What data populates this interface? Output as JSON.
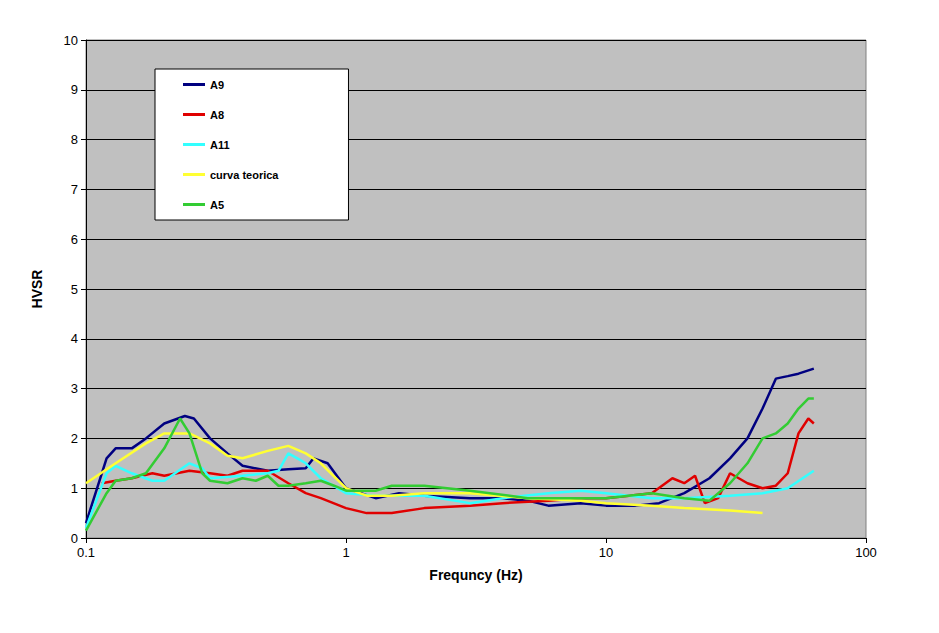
{
  "chart_data": {
    "type": "line",
    "x_label": "Frequncy (Hz)",
    "y_label": "HVSR",
    "log": "x",
    "grid": true,
    "legend": "upper left",
    "xlim": [
      0.1,
      100
    ],
    "xticks": [
      0.1,
      1,
      10,
      100
    ],
    "ylim": [
      0,
      10
    ],
    "yticks": [
      0,
      1,
      2,
      3,
      4,
      5,
      6,
      7,
      8,
      9,
      10
    ],
    "series": [
      {
        "name": "A9",
        "color": "#000080",
        "x": [
          0.1,
          0.12,
          0.13,
          0.15,
          0.17,
          0.2,
          0.24,
          0.26,
          0.3,
          0.35,
          0.4,
          0.5,
          0.6,
          0.7,
          0.75,
          0.85,
          1.0,
          1.3,
          1.6,
          2,
          3,
          4,
          5,
          6,
          8,
          10,
          13,
          16,
          20,
          25,
          30,
          35,
          40,
          45,
          50,
          55,
          63
        ],
        "values": [
          0.3,
          1.6,
          1.8,
          1.8,
          2.0,
          2.3,
          2.45,
          2.4,
          2.0,
          1.7,
          1.45,
          1.35,
          1.38,
          1.4,
          1.6,
          1.5,
          1.0,
          0.8,
          0.9,
          0.85,
          0.8,
          0.8,
          0.75,
          0.65,
          0.7,
          0.65,
          0.65,
          0.7,
          0.9,
          1.2,
          1.6,
          2.0,
          2.6,
          3.2,
          3.25,
          3.3,
          3.4
        ]
      },
      {
        "name": "A8",
        "color": "#e00000",
        "x": [
          0.115,
          0.13,
          0.15,
          0.18,
          0.2,
          0.25,
          0.3,
          0.35,
          0.4,
          0.5,
          0.6,
          0.7,
          0.8,
          1.0,
          1.2,
          1.5,
          2,
          3,
          4,
          6,
          8,
          10,
          15,
          18,
          20,
          22,
          24,
          27,
          30,
          35,
          40,
          45,
          50,
          55,
          60,
          63
        ],
        "values": [
          1.1,
          1.15,
          1.2,
          1.3,
          1.25,
          1.35,
          1.3,
          1.25,
          1.35,
          1.35,
          1.1,
          0.9,
          0.8,
          0.6,
          0.5,
          0.5,
          0.6,
          0.65,
          0.7,
          0.75,
          0.8,
          0.8,
          0.9,
          1.2,
          1.1,
          1.25,
          0.7,
          0.8,
          1.3,
          1.1,
          1.0,
          1.05,
          1.3,
          2.1,
          2.4,
          2.3
        ]
      },
      {
        "name": "A11",
        "color": "#33ffff",
        "x": [
          0.1,
          0.12,
          0.13,
          0.15,
          0.18,
          0.2,
          0.22,
          0.25,
          0.28,
          0.3,
          0.4,
          0.5,
          0.55,
          0.6,
          0.65,
          0.7,
          0.8,
          1.0,
          1.3,
          2,
          3,
          4,
          6,
          8,
          10,
          15,
          20,
          30,
          40,
          50,
          63
        ],
        "values": [
          0.2,
          1.3,
          1.45,
          1.3,
          1.15,
          1.15,
          1.3,
          1.5,
          1.4,
          1.2,
          1.25,
          1.3,
          1.35,
          1.7,
          1.6,
          1.5,
          1.2,
          0.9,
          0.85,
          0.85,
          0.7,
          0.8,
          0.9,
          0.95,
          0.9,
          0.8,
          0.8,
          0.85,
          0.9,
          1.0,
          1.35
        ]
      },
      {
        "name": "curva teorica",
        "color": "#ffff33",
        "x": [
          0.1,
          0.13,
          0.17,
          0.2,
          0.25,
          0.3,
          0.35,
          0.4,
          0.5,
          0.6,
          0.7,
          0.8,
          1.0,
          1.2,
          1.5,
          2,
          3,
          5,
          8,
          10,
          15,
          20,
          30,
          40
        ],
        "values": [
          1.1,
          1.5,
          1.9,
          2.1,
          2.1,
          1.9,
          1.65,
          1.6,
          1.75,
          1.85,
          1.7,
          1.5,
          1.0,
          0.85,
          0.85,
          0.9,
          0.9,
          0.8,
          0.75,
          0.7,
          0.65,
          0.6,
          0.55,
          0.5
        ]
      },
      {
        "name": "A5",
        "color": "#33cc33",
        "x": [
          0.1,
          0.12,
          0.13,
          0.15,
          0.17,
          0.2,
          0.23,
          0.25,
          0.28,
          0.3,
          0.35,
          0.4,
          0.45,
          0.5,
          0.55,
          0.6,
          0.7,
          0.8,
          0.9,
          1.0,
          1.3,
          1.5,
          2,
          3,
          5,
          8,
          10,
          15,
          20,
          25,
          30,
          35,
          40,
          45,
          50,
          55,
          60,
          63
        ],
        "values": [
          0.15,
          0.9,
          1.15,
          1.2,
          1.3,
          1.8,
          2.4,
          2.1,
          1.3,
          1.15,
          1.1,
          1.2,
          1.15,
          1.25,
          1.05,
          1.05,
          1.1,
          1.15,
          1.05,
          0.95,
          0.95,
          1.05,
          1.05,
          0.95,
          0.8,
          0.8,
          0.8,
          0.9,
          0.8,
          0.75,
          1.1,
          1.5,
          2.0,
          2.1,
          2.3,
          2.6,
          2.8,
          2.8
        ]
      }
    ]
  }
}
